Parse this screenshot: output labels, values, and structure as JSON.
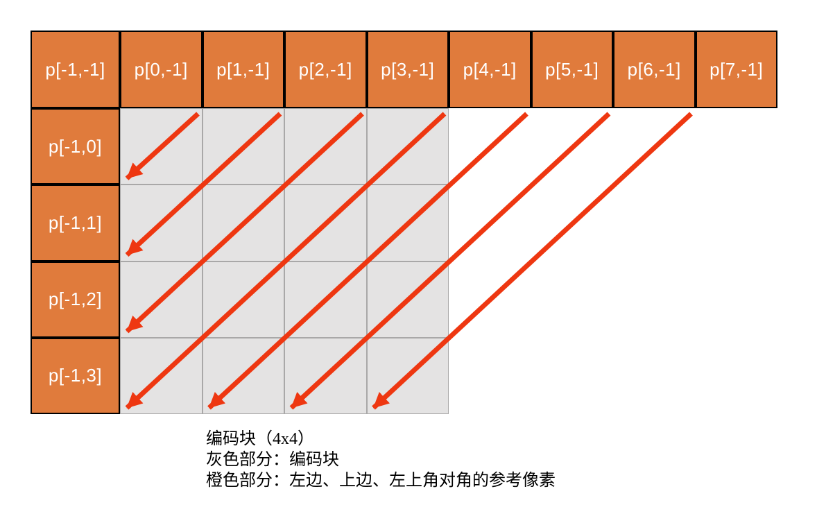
{
  "diagram": {
    "title": "intra-prediction-reference-pixels",
    "top_row_labels": [
      "p[-1,-1]",
      "p[0,-1]",
      "p[1,-1]",
      "p[2,-1]",
      "p[3,-1]",
      "p[4,-1]",
      "p[5,-1]",
      "p[6,-1]",
      "p[7,-1]"
    ],
    "left_column_labels": [
      "p[-1,0]",
      "p[-1,1]",
      "p[-1,2]",
      "p[-1,3]"
    ],
    "coding_block": {
      "rows": 4,
      "cols": 4
    },
    "arrows": [
      {
        "from": "p[0,-1]",
        "direction": "down-left-diagonal",
        "span_cells": 1,
        "ends_at": "left-edge-row-0"
      },
      {
        "from": "p[1,-1]",
        "direction": "down-left-diagonal",
        "span_cells": 2,
        "ends_at": "left-edge-row-1"
      },
      {
        "from": "p[2,-1]",
        "direction": "down-left-diagonal",
        "span_cells": 3,
        "ends_at": "left-edge-row-2"
      },
      {
        "from": "p[3,-1]",
        "direction": "down-left-diagonal",
        "span_cells": 4,
        "ends_at": "left-edge-row-3"
      },
      {
        "from": "p[4,-1]",
        "direction": "down-left-diagonal",
        "span_cells": 4,
        "ends_at": "bottom-edge-col-0"
      },
      {
        "from": "p[5,-1]",
        "direction": "down-left-diagonal",
        "span_cells": 4,
        "ends_at": "bottom-edge-col-1"
      },
      {
        "from": "p[6,-1]",
        "direction": "down-left-diagonal",
        "span_cells": 4,
        "ends_at": "bottom-edge-col-2"
      }
    ],
    "caption_lines": [
      "编码块（4x4）",
      "灰色部分：编码块",
      "橙色部分：左边、上边、左上角对角的参考像素"
    ],
    "colors": {
      "reference_orange": "#E07B3C",
      "block_gray_fill": "#E4E3E3",
      "grid_line_gray": "#A9A8A8",
      "arrow_red": "#EE3711",
      "border_black": "#000000",
      "label_white": "#FFFFFF",
      "caption_black": "#000000",
      "background": "#FFFFFF"
    }
  }
}
